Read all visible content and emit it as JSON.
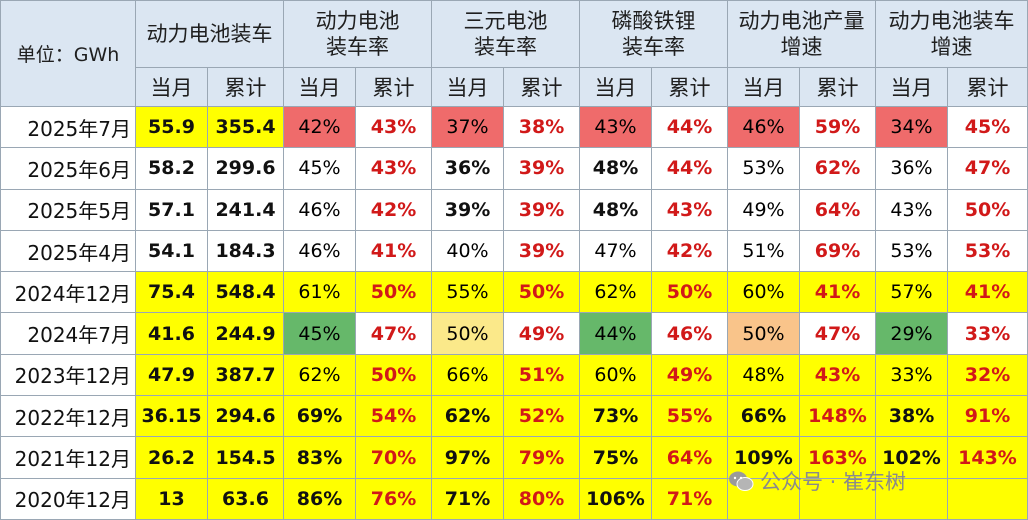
{
  "header": {
    "unit": "单位：GWh",
    "groups": [
      {
        "line1": "动力电池装车",
        "line2": ""
      },
      {
        "line1": "动力电池",
        "line2": "装车率"
      },
      {
        "line1": "三元电池",
        "line2": "装车率"
      },
      {
        "line1": "磷酸铁锂",
        "line2": "装车率"
      },
      {
        "line1": "动力电池产量",
        "line2": "增速"
      },
      {
        "line1": "动力电池装车",
        "line2": "增速"
      }
    ],
    "sub_month": "当月",
    "sub_cum": "累计"
  },
  "rows": [
    {
      "label": "2025年7月",
      "v": [
        "55.9",
        "355.4",
        "42%",
        "43%",
        "37%",
        "38%",
        "43%",
        "44%",
        "46%",
        "59%",
        "34%",
        "45%"
      ]
    },
    {
      "label": "2025年6月",
      "v": [
        "58.2",
        "299.6",
        "45%",
        "43%",
        "36%",
        "39%",
        "48%",
        "44%",
        "53%",
        "62%",
        "36%",
        "47%"
      ]
    },
    {
      "label": "2025年5月",
      "v": [
        "57.1",
        "241.4",
        "46%",
        "42%",
        "39%",
        "39%",
        "48%",
        "43%",
        "49%",
        "64%",
        "43%",
        "50%"
      ]
    },
    {
      "label": "2025年4月",
      "v": [
        "54.1",
        "184.3",
        "46%",
        "41%",
        "40%",
        "39%",
        "47%",
        "42%",
        "51%",
        "69%",
        "53%",
        "53%"
      ]
    },
    {
      "label": "2024年12月",
      "v": [
        "75.4",
        "548.4",
        "61%",
        "50%",
        "55%",
        "50%",
        "62%",
        "50%",
        "60%",
        "41%",
        "57%",
        "41%"
      ]
    },
    {
      "label": "2024年7月",
      "v": [
        "41.6",
        "244.9",
        "45%",
        "47%",
        "50%",
        "49%",
        "44%",
        "46%",
        "50%",
        "47%",
        "29%",
        "33%"
      ]
    },
    {
      "label": "2023年12月",
      "v": [
        "47.9",
        "387.7",
        "62%",
        "50%",
        "66%",
        "51%",
        "60%",
        "49%",
        "48%",
        "43%",
        "33%",
        "32%"
      ]
    },
    {
      "label": "2022年12月",
      "v": [
        "36.15",
        "294.6",
        "69%",
        "54%",
        "62%",
        "52%",
        "73%",
        "55%",
        "66%",
        "148%",
        "38%",
        "91%"
      ]
    },
    {
      "label": "2021年12月",
      "v": [
        "26.2",
        "154.5",
        "83%",
        "70%",
        "97%",
        "79%",
        "75%",
        "64%",
        "109%",
        "163%",
        "102%",
        "143%"
      ]
    },
    {
      "label": "2020年12月",
      "v": [
        "13",
        "63.6",
        "86%",
        "76%",
        "71%",
        "80%",
        "106%",
        "71%",
        "",
        "",
        "",
        ""
      ]
    }
  ],
  "watermark": "公众号 · 崔东树",
  "colors": {
    "yellow": "#ffff00",
    "red": "#ef6b6b",
    "green": "#66b86a",
    "light_yellow": "#fbe98a",
    "orange": "#f9c48a",
    "header_bg": "#dbe6f2",
    "cum_text": "#d11919"
  }
}
